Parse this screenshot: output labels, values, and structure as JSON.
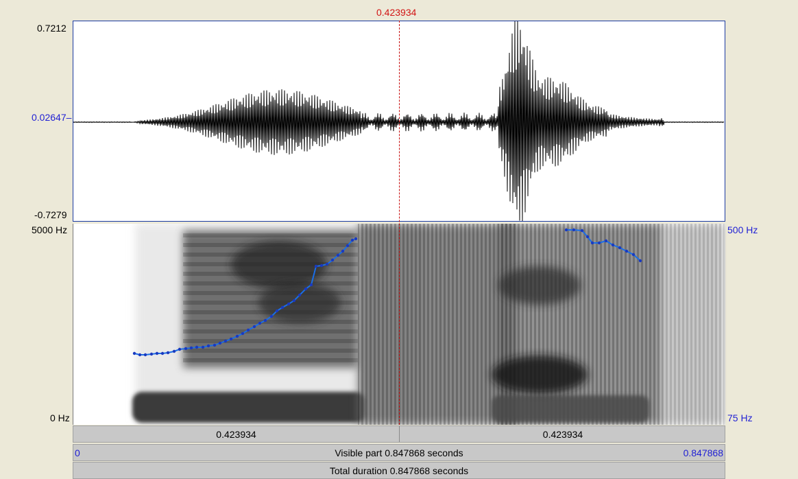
{
  "cursor": {
    "time_label": "0.423934"
  },
  "waveform": {
    "y_max_label": "0.7212",
    "y_mid_label": "0.02647",
    "y_min_label": "-0.7279"
  },
  "spectrogram": {
    "freq_top_label": "5000 Hz",
    "freq_bottom_label": "0 Hz",
    "pitch_top_label": "500 Hz",
    "pitch_bottom_label": "75 Hz"
  },
  "bars": {
    "left_segment": "0.423934",
    "right_segment": "0.423934",
    "visible_start": "0",
    "visible_text": "Visible part 0.847868 seconds",
    "visible_end": "0.847868",
    "total_text": "Total duration 0.847868 seconds"
  },
  "colors": {
    "axis_blue": "#1f1fd4",
    "cursor_red": "#d21414",
    "pitch_line": "#1a6ee8"
  }
}
